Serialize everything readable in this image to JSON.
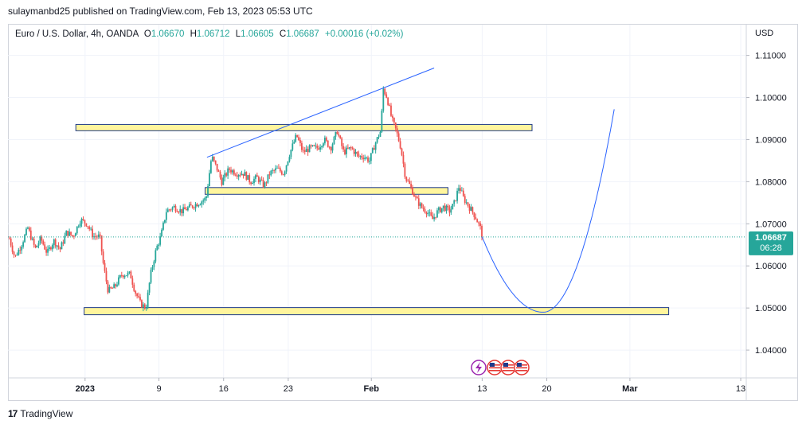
{
  "publisher_line": "sulaymanbd25 published on TradingView.com, Feb 13, 2023 05:53 UTC",
  "footer": {
    "logo_mark": "17",
    "brand": "TradingView"
  },
  "colors": {
    "up": "#26a69a",
    "down": "#ef5350",
    "zone_fill": "#fff59d",
    "zone_border": "#1e3a8a",
    "trend": "#2962ff",
    "price_tag": "#26a69a",
    "grid": "#f0f3fa",
    "text": "#131722",
    "axis_text": "#131722",
    "legend_value": "#26a69a"
  },
  "legend": {
    "symbol": "Euro / U.S. Dollar, 4h, OANDA",
    "o_label": "O",
    "o_value": "1.06670",
    "h_label": "H",
    "h_value": "1.06712",
    "l_label": "L",
    "l_value": "1.06605",
    "c_label": "C",
    "c_value": "1.06687",
    "change": "+0.00016 (+0.02%)"
  },
  "price_tag": {
    "price": "1.06687",
    "countdown": "06:28"
  },
  "event_icons": [
    "lightning-icon",
    "us-flag-icon",
    "us-flag-icon",
    "us-flag-icon"
  ],
  "chart_data": {
    "type": "candlestick",
    "symbol": "EURUSD",
    "timeframe": "4h",
    "currency_label": "USD",
    "y_ticks": [
      "1.11000",
      "1.10000",
      "1.09000",
      "1.08000",
      "1.07000",
      "1.06000",
      "1.05000",
      "1.04000"
    ],
    "ylim": [
      1.0334,
      1.1173
    ],
    "x_ticks": [
      {
        "label": "2023",
        "day": 0,
        "bold": true
      },
      {
        "label": "9",
        "day": 8
      },
      {
        "label": "16",
        "day": 15
      },
      {
        "label": "23",
        "day": 22
      },
      {
        "label": "Feb",
        "day": 31,
        "bold": true
      },
      {
        "label": "13",
        "day": 43
      },
      {
        "label": "20",
        "day": 50
      },
      {
        "label": "Mar",
        "day": 59,
        "bold": true
      },
      {
        "label": "13",
        "day": 71
      }
    ],
    "xlim_days": [
      -8.35,
      71.6
    ],
    "last_price": 1.06687,
    "price_path": [
      [
        -8.2,
        1.0665
      ],
      [
        -7.6,
        1.062
      ],
      [
        -6.9,
        1.065
      ],
      [
        -6.2,
        1.069
      ],
      [
        -5.4,
        1.064
      ],
      [
        -4.8,
        1.0665
      ],
      [
        -4.1,
        1.063
      ],
      [
        -3.4,
        1.066
      ],
      [
        -2.7,
        1.064
      ],
      [
        -2.0,
        1.068
      ],
      [
        -1.3,
        1.067
      ],
      [
        -0.5,
        1.071
      ],
      [
        0.2,
        1.07
      ],
      [
        0.9,
        1.067
      ],
      [
        1.6,
        1.067
      ],
      [
        2.0,
        1.06
      ],
      [
        2.5,
        1.054
      ],
      [
        3.2,
        1.055
      ],
      [
        4.0,
        1.058
      ],
      [
        4.9,
        1.058
      ],
      [
        5.4,
        1.054
      ],
      [
        6.0,
        1.051
      ],
      [
        6.6,
        1.05
      ],
      [
        7.1,
        1.058
      ],
      [
        7.7,
        1.064
      ],
      [
        8.2,
        1.067
      ],
      [
        8.8,
        1.073
      ],
      [
        9.6,
        1.074
      ],
      [
        10.5,
        1.073
      ],
      [
        11.4,
        1.074
      ],
      [
        12.3,
        1.075
      ],
      [
        13.1,
        1.076
      ],
      [
        13.7,
        1.086
      ],
      [
        14.3,
        1.083
      ],
      [
        14.8,
        1.08
      ],
      [
        15.6,
        1.083
      ],
      [
        16.4,
        1.082
      ],
      [
        17.2,
        1.082
      ],
      [
        17.9,
        1.08
      ],
      [
        18.6,
        1.081
      ],
      [
        19.4,
        1.079
      ],
      [
        20.0,
        1.082
      ],
      [
        20.8,
        1.083
      ],
      [
        21.5,
        1.082
      ],
      [
        22.2,
        1.087
      ],
      [
        22.9,
        1.091
      ],
      [
        23.6,
        1.087
      ],
      [
        24.4,
        1.088
      ],
      [
        25.2,
        1.088
      ],
      [
        25.9,
        1.09
      ],
      [
        26.6,
        1.088
      ],
      [
        27.3,
        1.092
      ],
      [
        28.0,
        1.087
      ],
      [
        28.8,
        1.088
      ],
      [
        29.6,
        1.086
      ],
      [
        30.2,
        1.086
      ],
      [
        30.8,
        1.085
      ],
      [
        31.4,
        1.089
      ],
      [
        32.0,
        1.092
      ],
      [
        32.3,
        1.102
      ],
      [
        32.7,
        1.1
      ],
      [
        33.2,
        1.095
      ],
      [
        33.7,
        1.092
      ],
      [
        34.2,
        1.088
      ],
      [
        34.7,
        1.081
      ],
      [
        35.2,
        1.079
      ],
      [
        35.8,
        1.076
      ],
      [
        36.4,
        1.074
      ],
      [
        37.0,
        1.073
      ],
      [
        37.6,
        1.071
      ],
      [
        38.2,
        1.073
      ],
      [
        38.8,
        1.074
      ],
      [
        39.5,
        1.073
      ],
      [
        40.0,
        1.075
      ],
      [
        40.5,
        1.079
      ],
      [
        41.0,
        1.076
      ],
      [
        41.6,
        1.074
      ],
      [
        42.2,
        1.072
      ],
      [
        42.8,
        1.069
      ],
      [
        43.0,
        1.0669
      ]
    ],
    "zones": [
      {
        "day_start": -1.0,
        "day_end": 48.4,
        "price_top": 1.0936,
        "price_bottom": 1.0921
      },
      {
        "day_start": 13.0,
        "day_end": 39.3,
        "price_top": 1.0786,
        "price_bottom": 1.077
      },
      {
        "day_start": -0.1,
        "day_end": 63.2,
        "price_top": 1.0501,
        "price_bottom": 1.0484
      }
    ],
    "trendline": {
      "day_start": 13.2,
      "price_start": 1.0858,
      "day_end": 37.8,
      "price_end": 1.107
    },
    "projection": {
      "start_day": 43.0,
      "start_price": 1.0669,
      "bottom_day": 49.6,
      "bottom_price": 1.049,
      "end_day": 57.3,
      "end_price": 1.0972
    }
  }
}
